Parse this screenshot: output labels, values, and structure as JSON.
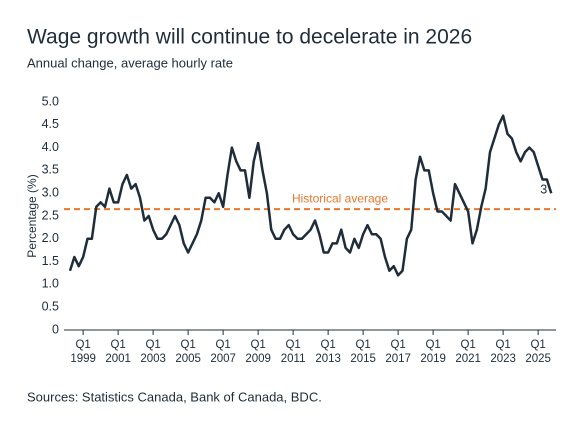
{
  "chart_data": {
    "type": "line",
    "title": "Wage growth will continue to decelerate in 2026",
    "subtitle": "Annual change, average hourly rate",
    "y_label": "Percentage (%)",
    "source": "Sources: Statistics Canada, Bank of Canada, BDC.",
    "categories": [
      null,
      null,
      null,
      "Q1\n1999",
      null,
      null,
      null,
      null,
      null,
      null,
      null,
      "Q1\n2001",
      null,
      null,
      null,
      null,
      null,
      null,
      null,
      "Q1\n2003",
      null,
      null,
      null,
      null,
      null,
      null,
      null,
      "Q1\n2005",
      null,
      null,
      null,
      null,
      null,
      null,
      null,
      "Q1\n2007",
      null,
      null,
      null,
      null,
      null,
      null,
      null,
      "Q1\n2009",
      null,
      null,
      null,
      null,
      null,
      null,
      null,
      "Q1\n2011",
      null,
      null,
      null,
      null,
      null,
      null,
      null,
      "Q1\n2013",
      null,
      null,
      null,
      null,
      null,
      null,
      null,
      "Q1\n2015",
      null,
      null,
      null,
      null,
      null,
      null,
      null,
      "Q1\n2017",
      null,
      null,
      null,
      null,
      null,
      null,
      null,
      "Q1\n2019",
      null,
      null,
      null,
      null,
      null,
      null,
      null,
      "Q1\n2021",
      null,
      null,
      null,
      null,
      null,
      null,
      null,
      "Q1\n2023",
      null,
      null,
      null,
      null,
      null,
      null,
      null,
      "Q1\n2025",
      null,
      null,
      null
    ],
    "series": [
      {
        "name": "Wage growth",
        "color": "#1f2d3a",
        "values": [
          1.3,
          1.6,
          1.4,
          1.6,
          2.0,
          2.0,
          2.7,
          2.8,
          2.7,
          3.1,
          2.8,
          2.8,
          3.2,
          3.4,
          3.1,
          3.2,
          2.9,
          2.4,
          2.5,
          2.2,
          2.0,
          2.0,
          2.1,
          2.3,
          2.5,
          2.3,
          1.9,
          1.7,
          1.9,
          2.1,
          2.4,
          2.9,
          2.9,
          2.8,
          3.0,
          2.7,
          3.4,
          4.0,
          3.7,
          3.5,
          3.5,
          2.9,
          3.7,
          4.1,
          3.5,
          3.0,
          2.2,
          2.0,
          2.0,
          2.2,
          2.3,
          2.1,
          2.0,
          2.0,
          2.1,
          2.2,
          2.4,
          2.1,
          1.7,
          1.7,
          1.9,
          1.9,
          2.2,
          1.8,
          1.7,
          2.0,
          1.8,
          2.1,
          2.3,
          2.1,
          2.1,
          2.0,
          1.6,
          1.3,
          1.4,
          1.2,
          1.3,
          2.0,
          2.2,
          3.3,
          3.8,
          3.5,
          3.5,
          3.0,
          2.6,
          2.6,
          2.5,
          2.4,
          3.2,
          3.0,
          2.8,
          2.6,
          1.9,
          2.2,
          2.7,
          3.1,
          3.9,
          4.2,
          4.5,
          4.7,
          4.3,
          4.2,
          3.9,
          3.7,
          3.9,
          4.0,
          3.9,
          3.6,
          3.3,
          3.3,
          3.0
        ]
      }
    ],
    "reference_line": {
      "label": "Historical average",
      "value": 2.65,
      "color": "#e8772e"
    },
    "ylim": [
      0,
      5.0
    ],
    "yticks": [
      0,
      {
        "value": 0.5,
        "label": "0.5"
      },
      {
        "value": 1.0,
        "label": "1.0"
      },
      {
        "value": 1.5,
        "label": "1.5"
      },
      {
        "value": 2.0,
        "label": "2.0"
      },
      {
        "value": 2.5,
        "label": "2.5"
      },
      {
        "value": 3.0,
        "label": "3.0"
      },
      {
        "value": 3.5,
        "label": "3.5"
      },
      {
        "value": 4.0,
        "label": "4.0"
      },
      {
        "value": 4.5,
        "label": "4.5"
      },
      {
        "value": 5.0,
        "label": "5.0"
      }
    ],
    "grid": false
  }
}
